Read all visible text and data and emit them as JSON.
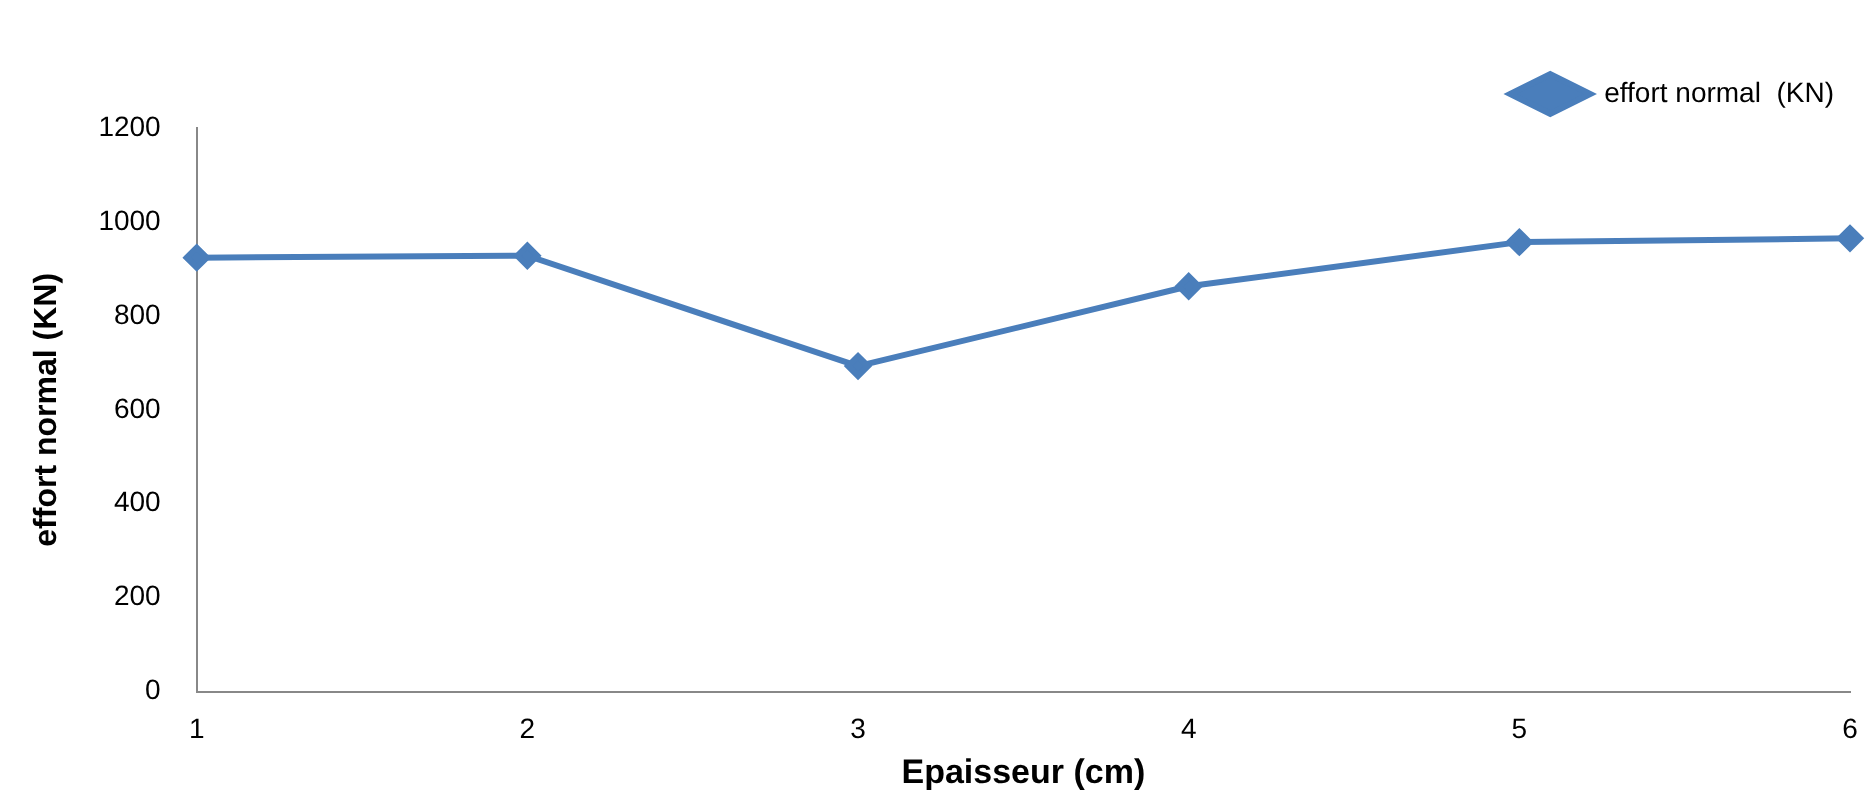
{
  "chart_data": {
    "type": "line",
    "xlabel": "Epaisseur (cm)",
    "ylabel": "effort normal (KN)",
    "categories": [
      "1",
      "2",
      "3",
      "4",
      "5",
      "6"
    ],
    "series": [
      {
        "name": "effort normal  (KN)",
        "color": "#4a7ebb",
        "values": [
          924,
          928,
          693,
          863,
          957,
          965
        ]
      }
    ],
    "ylim": [
      0,
      1200
    ],
    "yticks": [
      0,
      200,
      400,
      600,
      800,
      1000,
      1200
    ],
    "grid": false,
    "legend": "top right",
    "marker": "diamond",
    "line_style": "solid"
  }
}
